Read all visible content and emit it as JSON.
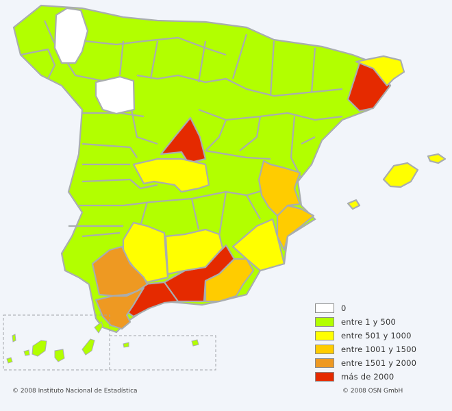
{
  "colors": {
    "c0": "#ffffff",
    "c1": "#b2ff00",
    "c2": "#ffff00",
    "c3": "#ffcc00",
    "c4": "#ee9922",
    "c5": "#e52a00"
  },
  "legend": [
    {
      "label": "0",
      "color": "#ffffff"
    },
    {
      "label": "entre 1 y 500",
      "color": "#b2ff00"
    },
    {
      "label": "entre 501 y 1000",
      "color": "#ffff00"
    },
    {
      "label": "entre 1001 y 1500",
      "color": "#ffcc00"
    },
    {
      "label": "entre 1501 y 2000",
      "color": "#ee9922"
    },
    {
      "label": "más de 2000",
      "color": "#e52a00"
    }
  ],
  "credits": {
    "left": "© 2008 Instituto Nacional de Estadística",
    "right": "© 2008 OSN GmbH"
  }
}
